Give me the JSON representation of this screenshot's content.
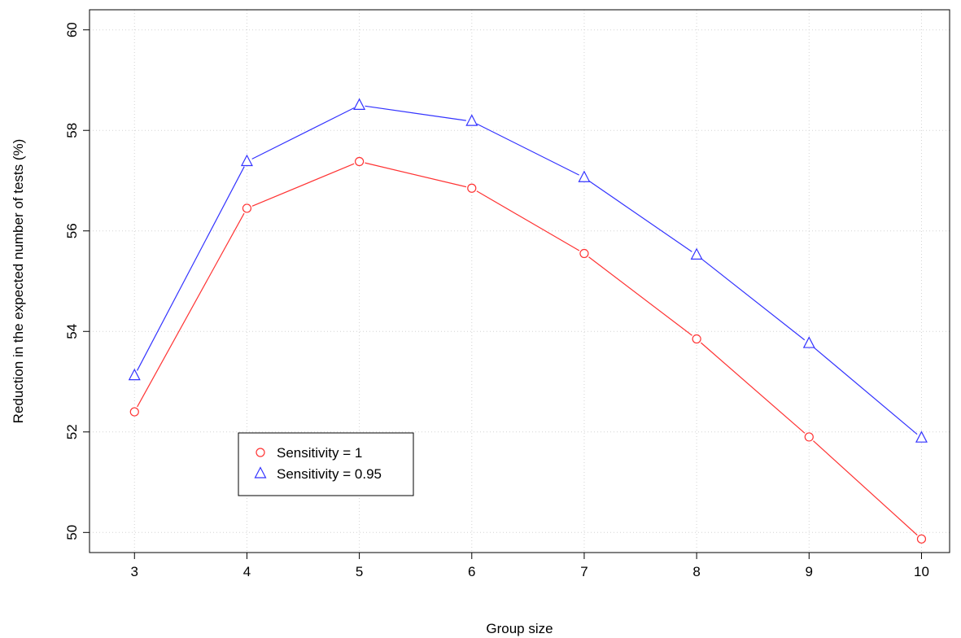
{
  "chart_data": {
    "type": "line",
    "title": "",
    "xlabel": "Group size",
    "ylabel": "Reduction in the expected number of tests (%)",
    "x": [
      3,
      4,
      5,
      6,
      7,
      8,
      9,
      10
    ],
    "xlim": [
      2.6,
      10.25
    ],
    "ylim": [
      49.6,
      60.4
    ],
    "xticks": [
      3,
      4,
      5,
      6,
      7,
      8,
      9,
      10
    ],
    "yticks": [
      50,
      52,
      54,
      56,
      58,
      60
    ],
    "grid": true,
    "legend_position": "bottom-left",
    "series": [
      {
        "name": "Sensitivity = 1",
        "marker": "circle",
        "color": "#ff3333",
        "values": [
          52.4,
          56.45,
          57.38,
          56.85,
          55.55,
          53.85,
          51.9,
          49.87
        ]
      },
      {
        "name": "Sensitivity = 0.95",
        "marker": "triangle",
        "color": "#3333ff",
        "values": [
          53.12,
          57.38,
          58.5,
          58.18,
          57.06,
          55.52,
          53.76,
          51.88
        ]
      }
    ]
  }
}
